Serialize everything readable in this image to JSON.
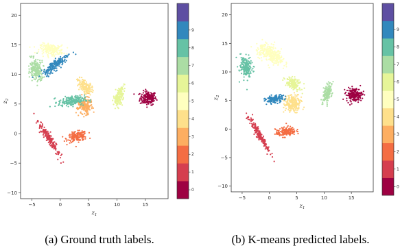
{
  "colors": [
    "#9e0142",
    "#d53e4f",
    "#f46d43",
    "#fdae61",
    "#fee08b",
    "#ffffbf",
    "#e6f598",
    "#abdda4",
    "#66c2a5",
    "#3288bd",
    "#5e4fa2"
  ],
  "chart_data": [
    {
      "type": "scatter",
      "caption": "(a) Ground truth labels.",
      "xlabel_main": "z",
      "xlabel_sub": "1",
      "ylabel_main": "z",
      "ylabel_sub": "2",
      "xlim": [
        -7,
        19
      ],
      "ylim": [
        -11,
        22
      ],
      "xticks": [
        -5,
        0,
        5,
        10,
        15
      ],
      "yticks": [
        -10,
        -5,
        0,
        5,
        10,
        15,
        20
      ],
      "colorbar": {
        "ticks": [
          0,
          1,
          2,
          3,
          4,
          5,
          6,
          7,
          8,
          9
        ]
      },
      "clusters": [
        {
          "label": 0,
          "cx": 15.5,
          "cy": 6.0,
          "rx": 1.6,
          "ry": 1.3,
          "angle": 0
        },
        {
          "label": 1,
          "cx": -2.0,
          "cy": -0.8,
          "rx": 3.8,
          "ry": 0.55,
          "angle": -57
        },
        {
          "label": 2,
          "cx": 3.0,
          "cy": -0.5,
          "rx": 2.0,
          "ry": 0.9,
          "angle": 10
        },
        {
          "label": 3,
          "cx": 4.3,
          "cy": 4.7,
          "rx": 1.5,
          "ry": 1.5,
          "angle": 60
        },
        {
          "label": 4,
          "cx": 4.2,
          "cy": 8.0,
          "rx": 1.7,
          "ry": 1.0,
          "angle": -40
        },
        {
          "label": 5,
          "cx": -1.5,
          "cy": 14.2,
          "rx": 2.3,
          "ry": 1.0,
          "angle": -5
        },
        {
          "label": 6,
          "cx": 10.3,
          "cy": 6.2,
          "rx": 1.9,
          "ry": 0.8,
          "angle": 70
        },
        {
          "label": 7,
          "cx": -4.3,
          "cy": 10.8,
          "rx": 2.0,
          "ry": 1.2,
          "angle": -80
        },
        {
          "label": 8,
          "cx": 2.0,
          "cy": 5.5,
          "rx": 2.6,
          "ry": 0.9,
          "angle": 5
        },
        {
          "label": 9,
          "cx": -0.8,
          "cy": 11.7,
          "rx": 3.0,
          "ry": 0.85,
          "angle": 38
        }
      ]
    },
    {
      "type": "scatter",
      "caption": "(b) K-means predicted labels.",
      "xlabel_main": "z",
      "xlabel_sub": "1",
      "ylabel_main": "z",
      "ylabel_sub": "2",
      "xlim": [
        -7,
        19
      ],
      "ylim": [
        -11,
        22
      ],
      "xticks": [
        -5,
        0,
        5,
        10,
        15
      ],
      "yticks": [
        -10,
        -5,
        0,
        5,
        10,
        15,
        20
      ],
      "colorbar": {
        "ticks": [
          0,
          1,
          2,
          3,
          4,
          5,
          6,
          7,
          8,
          9
        ]
      },
      "clusters": [
        {
          "label": 0,
          "cx": 15.5,
          "cy": 6.0,
          "rx": 1.6,
          "ry": 1.3,
          "angle": 0
        },
        {
          "label": 1,
          "cx": -2.0,
          "cy": -0.8,
          "rx": 3.8,
          "ry": 0.55,
          "angle": -57
        },
        {
          "label": 2,
          "cx": 3.0,
          "cy": -0.5,
          "rx": 2.0,
          "ry": 0.9,
          "angle": 10
        },
        {
          "label": 4,
          "cx": 4.2,
          "cy": 4.5,
          "rx": 1.6,
          "ry": 1.6,
          "angle": 60
        },
        {
          "label": 5,
          "cx": 0.3,
          "cy": 13.0,
          "rx": 3.0,
          "ry": 1.5,
          "angle": -30
        },
        {
          "label": 6,
          "cx": 4.4,
          "cy": 8.0,
          "rx": 1.6,
          "ry": 0.95,
          "angle": -30
        },
        {
          "label": 7,
          "cx": 10.6,
          "cy": 6.2,
          "rx": 1.9,
          "ry": 0.8,
          "angle": 70
        },
        {
          "label": 8,
          "cx": -4.3,
          "cy": 10.8,
          "rx": 2.0,
          "ry": 1.2,
          "angle": -80
        },
        {
          "label": 9,
          "cx": 0.9,
          "cy": 5.2,
          "rx": 1.8,
          "ry": 0.75,
          "angle": 10
        }
      ]
    }
  ]
}
